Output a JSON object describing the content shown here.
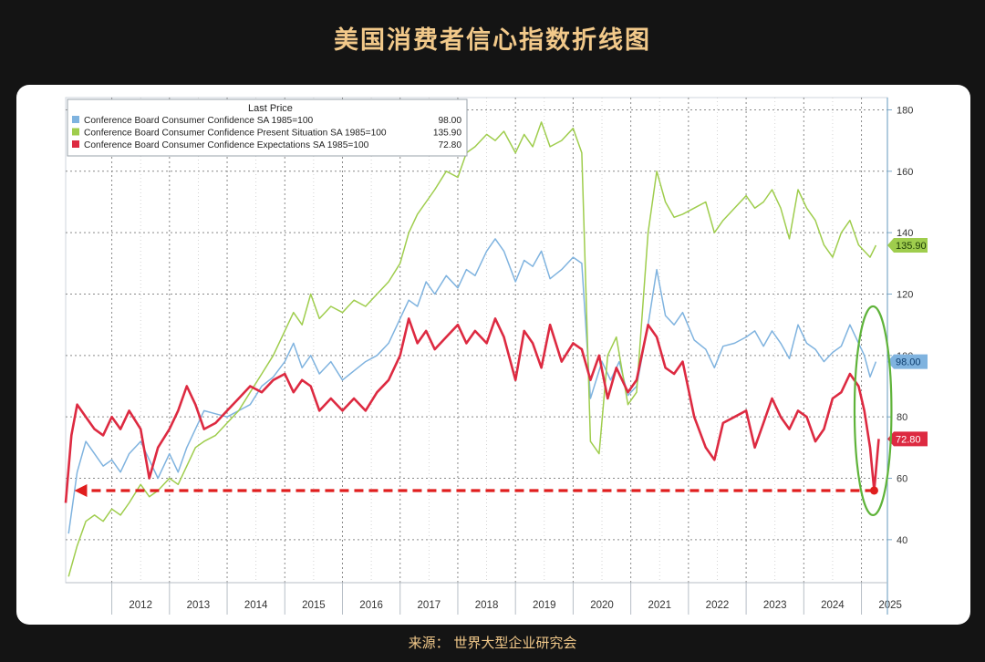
{
  "title": "美国消费者信心指数折线图",
  "source": "来源：  世界大型企业研究会",
  "chart_data": {
    "type": "line",
    "legend_header": "Last Price",
    "legend_placement": "top-left",
    "x_range": [
      2011.2,
      2025.45
    ],
    "x_ticks": [
      "2012",
      "2013",
      "2014",
      "2015",
      "2016",
      "2017",
      "2018",
      "2019",
      "2020",
      "2021",
      "2022",
      "2023",
      "2024",
      "2025"
    ],
    "y_range": [
      26,
      184
    ],
    "y_ticks": [
      40,
      60,
      80,
      100,
      120,
      140,
      160,
      180
    ],
    "grid": true,
    "series": [
      {
        "name": "Conference Board Consumer Confidence SA 1985=100",
        "last": "98.00",
        "color": "#7fb3df",
        "values": [
          [
            2011.25,
            42
          ],
          [
            2011.4,
            62
          ],
          [
            2011.55,
            72
          ],
          [
            2011.7,
            68
          ],
          [
            2011.85,
            64
          ],
          [
            2012.0,
            66
          ],
          [
            2012.15,
            62
          ],
          [
            2012.3,
            68
          ],
          [
            2012.5,
            72
          ],
          [
            2012.65,
            66
          ],
          [
            2012.8,
            60
          ],
          [
            2013.0,
            68
          ],
          [
            2013.15,
            62
          ],
          [
            2013.3,
            70
          ],
          [
            2013.45,
            76
          ],
          [
            2013.6,
            82
          ],
          [
            2013.8,
            81
          ],
          [
            2014.0,
            80
          ],
          [
            2014.2,
            82
          ],
          [
            2014.4,
            84
          ],
          [
            2014.6,
            90
          ],
          [
            2014.8,
            93
          ],
          [
            2015.0,
            98
          ],
          [
            2015.15,
            104
          ],
          [
            2015.3,
            96
          ],
          [
            2015.45,
            100
          ],
          [
            2015.6,
            94
          ],
          [
            2015.8,
            98
          ],
          [
            2016.0,
            92
          ],
          [
            2016.2,
            95
          ],
          [
            2016.4,
            98
          ],
          [
            2016.6,
            100
          ],
          [
            2016.8,
            104
          ],
          [
            2017.0,
            112
          ],
          [
            2017.15,
            118
          ],
          [
            2017.3,
            116
          ],
          [
            2017.45,
            124
          ],
          [
            2017.6,
            120
          ],
          [
            2017.8,
            126
          ],
          [
            2018.0,
            122
          ],
          [
            2018.15,
            128
          ],
          [
            2018.3,
            126
          ],
          [
            2018.5,
            134
          ],
          [
            2018.65,
            138
          ],
          [
            2018.8,
            134
          ],
          [
            2019.0,
            124
          ],
          [
            2019.15,
            131
          ],
          [
            2019.3,
            129
          ],
          [
            2019.45,
            134
          ],
          [
            2019.6,
            125
          ],
          [
            2019.8,
            128
          ],
          [
            2020.0,
            132
          ],
          [
            2020.15,
            130
          ],
          [
            2020.3,
            86
          ],
          [
            2020.5,
            98
          ],
          [
            2020.65,
            92
          ],
          [
            2020.8,
            98
          ],
          [
            2020.95,
            87
          ],
          [
            2021.1,
            90
          ],
          [
            2021.3,
            110
          ],
          [
            2021.45,
            128
          ],
          [
            2021.6,
            113
          ],
          [
            2021.75,
            110
          ],
          [
            2021.9,
            114
          ],
          [
            2022.1,
            105
          ],
          [
            2022.3,
            102
          ],
          [
            2022.45,
            96
          ],
          [
            2022.6,
            103
          ],
          [
            2022.8,
            104
          ],
          [
            2023.0,
            106
          ],
          [
            2023.15,
            108
          ],
          [
            2023.3,
            103
          ],
          [
            2023.45,
            108
          ],
          [
            2023.6,
            104
          ],
          [
            2023.75,
            99
          ],
          [
            2023.9,
            110
          ],
          [
            2024.05,
            104
          ],
          [
            2024.2,
            102
          ],
          [
            2024.35,
            98
          ],
          [
            2024.5,
            101
          ],
          [
            2024.65,
            103
          ],
          [
            2024.8,
            110
          ],
          [
            2024.95,
            104
          ],
          [
            2025.05,
            100
          ],
          [
            2025.15,
            93
          ],
          [
            2025.25,
            98
          ]
        ]
      },
      {
        "name": "Conference Board Consumer Confidence Present Situation SA 1985=100",
        "last": "135.90",
        "color": "#9fcd4d",
        "values": [
          [
            2011.25,
            28
          ],
          [
            2011.4,
            38
          ],
          [
            2011.55,
            46
          ],
          [
            2011.7,
            48
          ],
          [
            2011.85,
            46
          ],
          [
            2012.0,
            50
          ],
          [
            2012.15,
            48
          ],
          [
            2012.3,
            52
          ],
          [
            2012.5,
            58
          ],
          [
            2012.65,
            54
          ],
          [
            2012.8,
            56
          ],
          [
            2013.0,
            60
          ],
          [
            2013.15,
            58
          ],
          [
            2013.3,
            64
          ],
          [
            2013.45,
            70
          ],
          [
            2013.6,
            72
          ],
          [
            2013.8,
            74
          ],
          [
            2014.0,
            78
          ],
          [
            2014.2,
            82
          ],
          [
            2014.4,
            88
          ],
          [
            2014.6,
            94
          ],
          [
            2014.8,
            100
          ],
          [
            2015.0,
            108
          ],
          [
            2015.15,
            114
          ],
          [
            2015.3,
            110
          ],
          [
            2015.45,
            120
          ],
          [
            2015.6,
            112
          ],
          [
            2015.8,
            116
          ],
          [
            2016.0,
            114
          ],
          [
            2016.2,
            118
          ],
          [
            2016.4,
            116
          ],
          [
            2016.6,
            120
          ],
          [
            2016.8,
            124
          ],
          [
            2017.0,
            130
          ],
          [
            2017.15,
            140
          ],
          [
            2017.3,
            146
          ],
          [
            2017.45,
            150
          ],
          [
            2017.6,
            154
          ],
          [
            2017.8,
            160
          ],
          [
            2018.0,
            158
          ],
          [
            2018.15,
            166
          ],
          [
            2018.3,
            168
          ],
          [
            2018.5,
            172
          ],
          [
            2018.65,
            170
          ],
          [
            2018.8,
            173
          ],
          [
            2019.0,
            166
          ],
          [
            2019.15,
            172
          ],
          [
            2019.3,
            168
          ],
          [
            2019.45,
            176
          ],
          [
            2019.6,
            168
          ],
          [
            2019.8,
            170
          ],
          [
            2020.0,
            174
          ],
          [
            2020.15,
            166
          ],
          [
            2020.3,
            72
          ],
          [
            2020.45,
            68
          ],
          [
            2020.6,
            100
          ],
          [
            2020.75,
            106
          ],
          [
            2020.95,
            84
          ],
          [
            2021.1,
            88
          ],
          [
            2021.3,
            140
          ],
          [
            2021.45,
            160
          ],
          [
            2021.6,
            150
          ],
          [
            2021.75,
            145
          ],
          [
            2021.9,
            146
          ],
          [
            2022.1,
            148
          ],
          [
            2022.3,
            150
          ],
          [
            2022.45,
            140
          ],
          [
            2022.6,
            144
          ],
          [
            2022.8,
            148
          ],
          [
            2023.0,
            152
          ],
          [
            2023.15,
            148
          ],
          [
            2023.3,
            150
          ],
          [
            2023.45,
            154
          ],
          [
            2023.6,
            148
          ],
          [
            2023.75,
            138
          ],
          [
            2023.9,
            154
          ],
          [
            2024.05,
            148
          ],
          [
            2024.2,
            144
          ],
          [
            2024.35,
            136
          ],
          [
            2024.5,
            132
          ],
          [
            2024.65,
            140
          ],
          [
            2024.8,
            144
          ],
          [
            2024.95,
            136
          ],
          [
            2025.05,
            134
          ],
          [
            2025.15,
            132
          ],
          [
            2025.25,
            135.9
          ]
        ]
      },
      {
        "name": "Conference Board Consumer Confidence Expectations SA 1985=100",
        "last": "72.80",
        "color": "#dd2a41",
        "values": [
          [
            2011.2,
            52
          ],
          [
            2011.3,
            74
          ],
          [
            2011.4,
            84
          ],
          [
            2011.55,
            80
          ],
          [
            2011.7,
            76
          ],
          [
            2011.85,
            74
          ],
          [
            2012.0,
            80
          ],
          [
            2012.15,
            76
          ],
          [
            2012.3,
            82
          ],
          [
            2012.5,
            76
          ],
          [
            2012.65,
            60
          ],
          [
            2012.8,
            70
          ],
          [
            2013.0,
            76
          ],
          [
            2013.15,
            82
          ],
          [
            2013.3,
            90
          ],
          [
            2013.45,
            84
          ],
          [
            2013.6,
            76
          ],
          [
            2013.8,
            78
          ],
          [
            2014.0,
            82
          ],
          [
            2014.2,
            86
          ],
          [
            2014.4,
            90
          ],
          [
            2014.6,
            88
          ],
          [
            2014.8,
            92
          ],
          [
            2015.0,
            94
          ],
          [
            2015.15,
            88
          ],
          [
            2015.3,
            92
          ],
          [
            2015.45,
            90
          ],
          [
            2015.6,
            82
          ],
          [
            2015.8,
            86
          ],
          [
            2016.0,
            82
          ],
          [
            2016.2,
            86
          ],
          [
            2016.4,
            82
          ],
          [
            2016.6,
            88
          ],
          [
            2016.8,
            92
          ],
          [
            2017.0,
            100
          ],
          [
            2017.15,
            112
          ],
          [
            2017.3,
            104
          ],
          [
            2017.45,
            108
          ],
          [
            2017.6,
            102
          ],
          [
            2017.8,
            106
          ],
          [
            2018.0,
            110
          ],
          [
            2018.15,
            104
          ],
          [
            2018.3,
            108
          ],
          [
            2018.5,
            104
          ],
          [
            2018.65,
            112
          ],
          [
            2018.8,
            106
          ],
          [
            2019.0,
            92
          ],
          [
            2019.15,
            108
          ],
          [
            2019.3,
            104
          ],
          [
            2019.45,
            96
          ],
          [
            2019.6,
            110
          ],
          [
            2019.8,
            98
          ],
          [
            2020.0,
            104
          ],
          [
            2020.15,
            102
          ],
          [
            2020.3,
            92
          ],
          [
            2020.45,
            100
          ],
          [
            2020.6,
            86
          ],
          [
            2020.75,
            96
          ],
          [
            2020.95,
            88
          ],
          [
            2021.1,
            92
          ],
          [
            2021.3,
            110
          ],
          [
            2021.45,
            106
          ],
          [
            2021.6,
            96
          ],
          [
            2021.75,
            94
          ],
          [
            2021.9,
            98
          ],
          [
            2022.1,
            80
          ],
          [
            2022.3,
            70
          ],
          [
            2022.45,
            66
          ],
          [
            2022.6,
            78
          ],
          [
            2022.8,
            80
          ],
          [
            2023.0,
            82
          ],
          [
            2023.15,
            70
          ],
          [
            2023.3,
            78
          ],
          [
            2023.45,
            86
          ],
          [
            2023.6,
            80
          ],
          [
            2023.75,
            76
          ],
          [
            2023.9,
            82
          ],
          [
            2024.05,
            80
          ],
          [
            2024.2,
            72
          ],
          [
            2024.35,
            76
          ],
          [
            2024.5,
            86
          ],
          [
            2024.65,
            88
          ],
          [
            2024.8,
            94
          ],
          [
            2024.95,
            90
          ],
          [
            2025.05,
            82
          ],
          [
            2025.15,
            70
          ],
          [
            2025.22,
            56
          ],
          [
            2025.3,
            72.8
          ]
        ]
      }
    ],
    "annotations": {
      "arrow": {
        "from_x": 2025.22,
        "to_x": 2011.35,
        "y": 56,
        "color": "#e01e1e"
      },
      "ellipse": {
        "cx": 2025.2,
        "cy": 82,
        "rx": 0.32,
        "ry": 34,
        "color": "#5fb33a"
      },
      "end_marker": {
        "x": 2025.22,
        "y": 56
      }
    }
  }
}
